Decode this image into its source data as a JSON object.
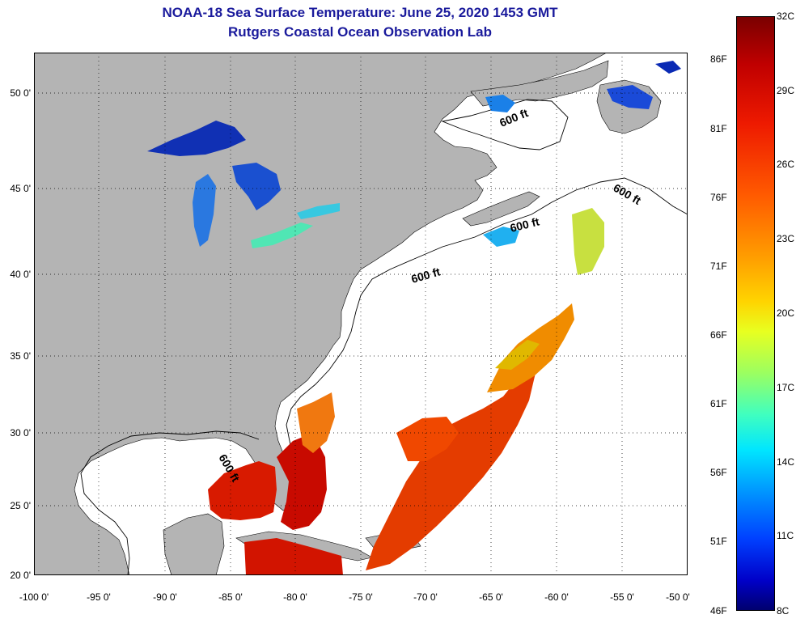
{
  "title": {
    "line1": "NOAA-18 Sea Surface Temperature:  June 25, 2020 1453 GMT",
    "line2": "Rutgers Coastal Ocean Observation Lab"
  },
  "map": {
    "land_color": "#b4b4b4",
    "no_data_color": "#ffffff",
    "grid_style": "dotted",
    "lat_labels": [
      "50 0'",
      "45 0'",
      "40 0'",
      "35 0'",
      "30 0'",
      "25 0'",
      "20 0'"
    ],
    "lon_labels": [
      "-100 0'",
      "-95 0'",
      "-90 0'",
      "-85 0'",
      "-80 0'",
      "-75 0'",
      "-70 0'",
      "-65 0'",
      "-60 0'",
      "-55 0'",
      "-50 0'"
    ],
    "contour_labels": [
      "600 ft",
      "600 ft",
      "600 ft",
      "600 ft",
      "600 ft"
    ],
    "regions": [
      {
        "name": "Great Lakes",
        "color": "#1e50dc"
      },
      {
        "name": "Gulf of Mexico / Florida Straits",
        "color": "#d81a00"
      },
      {
        "name": "Gulf Stream",
        "color": "#e83000"
      },
      {
        "name": "Sargasso Sea / Mid-Atlantic offshore",
        "color": "#f0a000"
      },
      {
        "name": "Gulf of Maine / Scotian Shelf",
        "color": "#20b0f0"
      },
      {
        "name": "Grand Banks offshore",
        "color": "#c8e040"
      },
      {
        "name": "Newfoundland",
        "color": "#1a4ad8"
      }
    ]
  },
  "colorbar": {
    "celsius_labels": [
      "32C",
      "29C",
      "26C",
      "23C",
      "20C",
      "17C",
      "14C",
      "11C",
      "8C"
    ],
    "fahrenheit_labels": [
      "86F",
      "81F",
      "76F",
      "71F",
      "66F",
      "61F",
      "56F",
      "51F",
      "46F"
    ],
    "colors": [
      "#7a0000",
      "#c00000",
      "#ff5a00",
      "#ffd400",
      "#9cff60",
      "#00e6ff",
      "#0096ff",
      "#0040ff",
      "#00006e"
    ]
  }
}
